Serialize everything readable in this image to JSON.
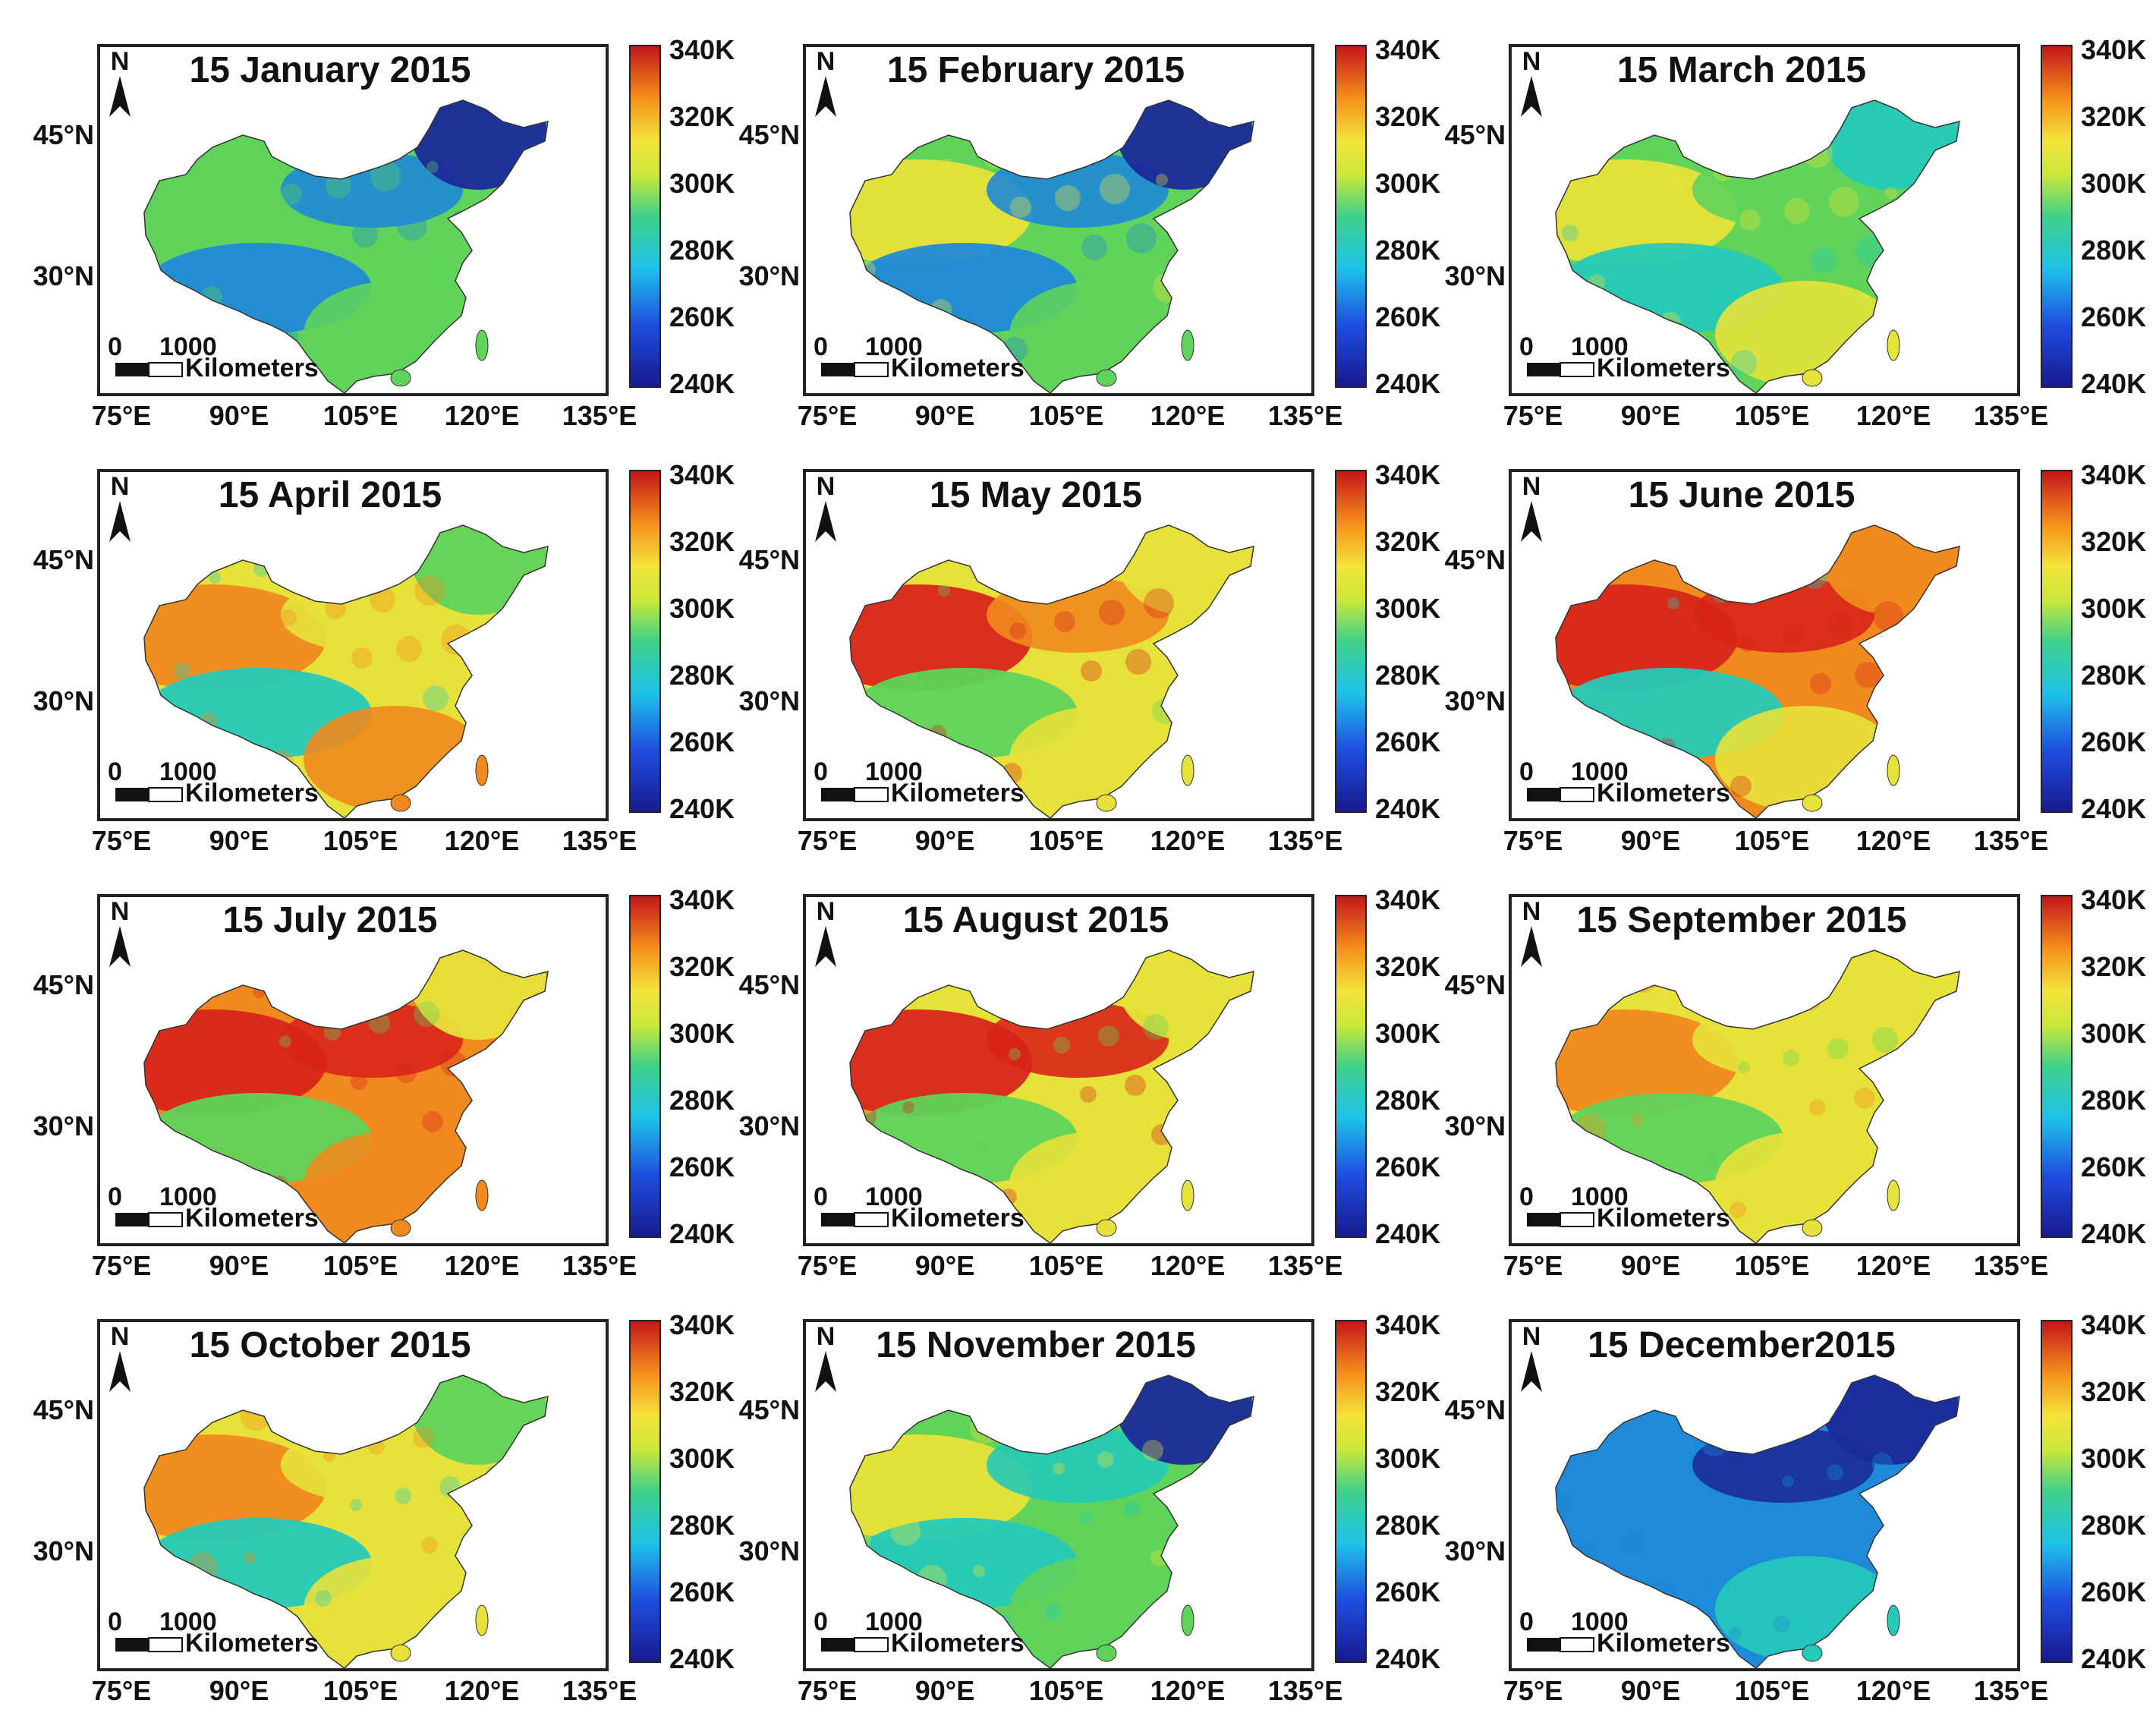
{
  "figure": {
    "panels": [
      {
        "title": "15 January 2015",
        "theme": "jan"
      },
      {
        "title": "15 February 2015",
        "theme": "feb"
      },
      {
        "title": "15 March 2015",
        "theme": "mar"
      },
      {
        "title": "15 April 2015",
        "theme": "apr"
      },
      {
        "title": "15 May 2015",
        "theme": "may"
      },
      {
        "title": "15 June 2015",
        "theme": "jun"
      },
      {
        "title": "15 July 2015",
        "theme": "jul"
      },
      {
        "title": "15 August 2015",
        "theme": "aug"
      },
      {
        "title": "15 September 2015",
        "theme": "sep"
      },
      {
        "title": "15 October 2015",
        "theme": "oct"
      },
      {
        "title": "15 November 2015",
        "theme": "nov"
      },
      {
        "title": "15 December2015",
        "theme": "dec"
      }
    ],
    "lon_labels": [
      "75°E",
      "90°E",
      "105°E",
      "120°E",
      "135°E"
    ],
    "lat_labels": [
      "45°N",
      "30°N"
    ],
    "colorbar_labels": [
      "340K",
      "320K",
      "300K",
      "280K",
      "260K",
      "240K"
    ],
    "north_label": "N",
    "scale_numbers": [
      "0",
      "1000"
    ],
    "scale_unit": "Kilometers",
    "colors": {
      "low": "#1a2a9a",
      "cool": "#1f8ad8",
      "mid_cool": "#25c9b8",
      "mid": "#5fd35a",
      "warm": "#e7e23a",
      "hot": "#f08a1e",
      "very_hot": "#d8251a"
    }
  }
}
